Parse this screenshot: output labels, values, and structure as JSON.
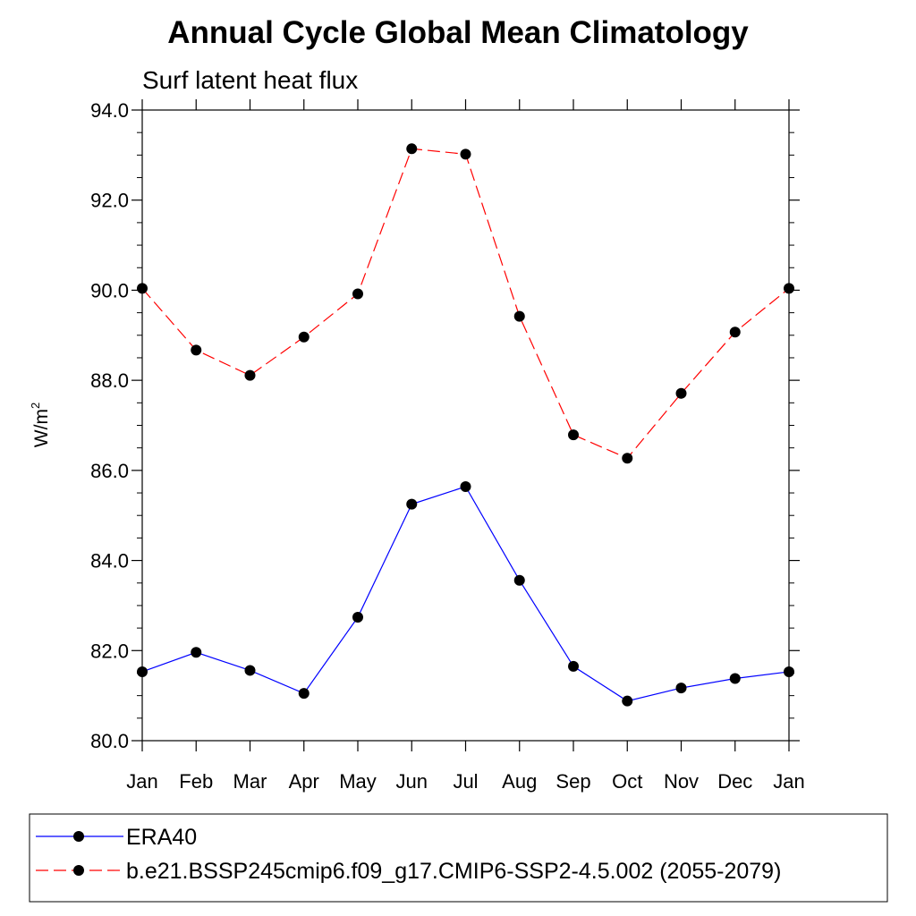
{
  "chart_data": {
    "type": "line",
    "title": "Annual Cycle Global Mean Climatology",
    "subtitle": "Surf latent heat flux",
    "xlabel": "",
    "ylabel": "W/m",
    "ylabel_superscript": "2",
    "categories": [
      "Jan",
      "Feb",
      "Mar",
      "Apr",
      "May",
      "Jun",
      "Jul",
      "Aug",
      "Sep",
      "Oct",
      "Nov",
      "Dec",
      "Jan"
    ],
    "ylim": [
      80.0,
      94.0
    ],
    "yticks": [
      "80.0",
      "82.0",
      "84.0",
      "86.0",
      "88.0",
      "90.0",
      "92.0",
      "94.0"
    ],
    "grid": false,
    "legend_position": "bottom",
    "series": [
      {
        "name": "ERA40",
        "color": "#0000ff",
        "dash": "solid",
        "marker": "filled-circle",
        "values": [
          81.53,
          81.96,
          81.56,
          81.05,
          82.74,
          85.25,
          85.64,
          83.56,
          81.65,
          80.88,
          81.17,
          81.38,
          81.53
        ]
      },
      {
        "name": "b.e21.BSSP245cmip6.f09_g17.CMIP6-SSP2-4.5.002 (2055-2079)",
        "color": "#ff0000",
        "dash": "dashed",
        "marker": "filled-circle",
        "values": [
          90.04,
          88.67,
          88.11,
          88.96,
          89.92,
          93.14,
          93.02,
          89.42,
          86.79,
          86.27,
          87.71,
          89.07,
          90.04
        ]
      }
    ]
  }
}
